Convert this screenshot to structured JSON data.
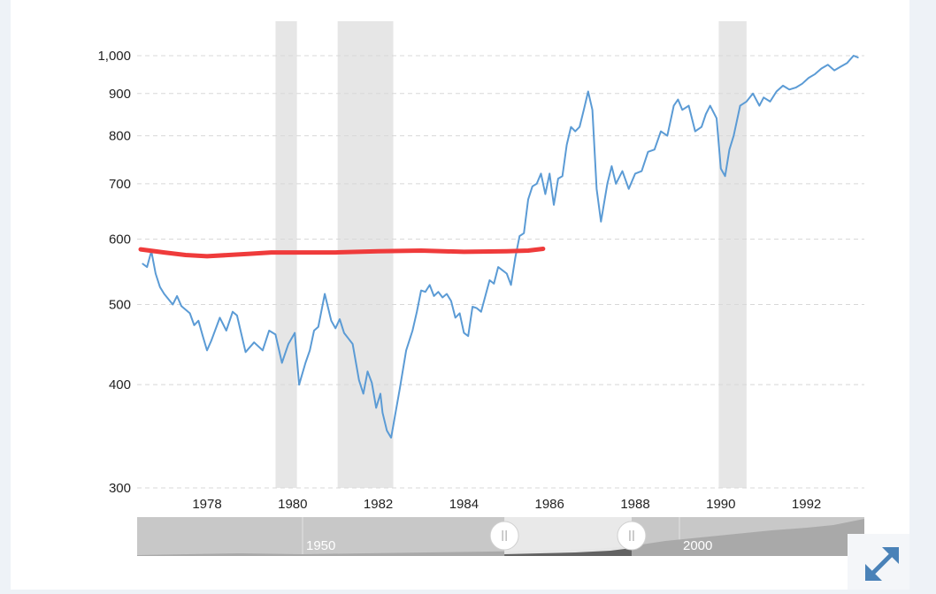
{
  "chart_data": {
    "type": "line",
    "title": "",
    "xlabel": "",
    "ylabel": "",
    "y_scale": "log",
    "ylim": [
      300,
      1030
    ],
    "xlim": [
      1976.4,
      1993.3
    ],
    "y_ticks": [
      300,
      400,
      500,
      600,
      700,
      800,
      900,
      1000
    ],
    "y_tick_labels": [
      "300",
      "400",
      "500",
      "600",
      "700",
      "800",
      "900",
      "1,000"
    ],
    "x_ticks": [
      1978,
      1980,
      1982,
      1984,
      1986,
      1988,
      1990,
      1992
    ],
    "x_tick_labels": [
      "1978",
      "1980",
      "1982",
      "1984",
      "1986",
      "1988",
      "1990",
      "1992"
    ],
    "grid": true,
    "recession_bands": [
      [
        1979.6,
        1980.1
      ],
      [
        1981.05,
        1982.35
      ],
      [
        1989.95,
        1990.6
      ]
    ],
    "series": [
      {
        "color": "#5b9bd5",
        "x": [
          1976.5,
          1976.6,
          1976.7,
          1976.8,
          1976.9,
          1977.0,
          1977.2,
          1977.3,
          1977.4,
          1977.6,
          1977.7,
          1977.8,
          1977.9,
          1978.0,
          1978.1,
          1978.3,
          1978.45,
          1978.6,
          1978.7,
          1978.9,
          1979.1,
          1979.3,
          1979.45,
          1979.6,
          1979.75,
          1979.9,
          1980.05,
          1980.15,
          1980.3,
          1980.4,
          1980.5,
          1980.6,
          1980.75,
          1980.9,
          1981.0,
          1981.1,
          1981.2,
          1981.3,
          1981.4,
          1981.55,
          1981.65,
          1981.75,
          1981.85,
          1981.95,
          1982.05,
          1982.1,
          1982.2,
          1982.3,
          1982.5,
          1982.65,
          1982.8,
          1982.9,
          1983.0,
          1983.1,
          1983.2,
          1983.3,
          1983.4,
          1983.5,
          1983.6,
          1983.7,
          1983.8,
          1983.9,
          1984.0,
          1984.1,
          1984.2,
          1984.3,
          1984.4,
          1984.5,
          1984.6,
          1984.7,
          1984.8,
          1984.9,
          1985.0,
          1985.1,
          1985.2,
          1985.3,
          1985.4,
          1985.5,
          1985.6,
          1985.7,
          1985.8,
          1985.9,
          1986.0,
          1986.1,
          1986.2,
          1986.3,
          1986.4,
          1986.5,
          1986.6,
          1986.7,
          1986.8,
          1986.9,
          1987.0,
          1987.1,
          1987.2,
          1987.35,
          1987.45,
          1987.55,
          1987.7,
          1987.85,
          1988.0,
          1988.15,
          1988.3,
          1988.45,
          1988.6,
          1988.75,
          1988.9,
          1989.0,
          1989.1,
          1989.25,
          1989.4,
          1989.55,
          1989.65,
          1989.75,
          1989.9,
          1990.0,
          1990.1,
          1990.2,
          1990.3,
          1990.45,
          1990.6,
          1990.75,
          1990.9,
          1991.0,
          1991.15,
          1991.3,
          1991.45,
          1991.6,
          1991.75,
          1991.9,
          1992.05,
          1992.2,
          1992.35,
          1992.5,
          1992.65,
          1992.8,
          1992.95,
          1993.1,
          1993.2
        ],
        "values": [
          560,
          555,
          580,
          545,
          525,
          515,
          500,
          512,
          498,
          488,
          472,
          478,
          458,
          440,
          452,
          482,
          465,
          490,
          485,
          438,
          450,
          440,
          465,
          460,
          425,
          448,
          462,
          400,
          425,
          440,
          465,
          470,
          515,
          478,
          468,
          480,
          462,
          455,
          448,
          405,
          390,
          415,
          402,
          375,
          390,
          370,
          352,
          345,
          395,
          440,
          465,
          490,
          520,
          518,
          528,
          512,
          518,
          510,
          515,
          505,
          482,
          488,
          462,
          458,
          497,
          495,
          490,
          512,
          535,
          530,
          555,
          550,
          545,
          528,
          570,
          605,
          610,
          670,
          695,
          700,
          720,
          680,
          720,
          660,
          710,
          715,
          780,
          820,
          810,
          820,
          860,
          905,
          860,
          690,
          630,
          700,
          735,
          700,
          725,
          690,
          720,
          725,
          765,
          770,
          810,
          800,
          870,
          885,
          860,
          870,
          810,
          820,
          850,
          870,
          840,
          730,
          715,
          770,
          800,
          870,
          880,
          900,
          870,
          890,
          880,
          905,
          920,
          910,
          915,
          925,
          940,
          950,
          965,
          975,
          960,
          970,
          980,
          1000,
          995
        ]
      },
      {
        "color": "#ef3b3b",
        "x": [
          1976.45,
          1977.0,
          1977.5,
          1978.0,
          1978.5,
          1979.0,
          1979.5,
          1980.0,
          1981.0,
          1982.0,
          1983.0,
          1984.0,
          1985.0,
          1985.5,
          1985.85
        ],
        "values": [
          583,
          578,
          574,
          572,
          574,
          576,
          578,
          578,
          578,
          580,
          581,
          579,
          580,
          581,
          584
        ]
      }
    ]
  },
  "navigator": {
    "labels": [
      "1950",
      "2000"
    ],
    "range_start_fraction": 0.505,
    "range_end_fraction": 0.68
  },
  "controls": {
    "expand_icon": "expand-arrows-icon"
  }
}
